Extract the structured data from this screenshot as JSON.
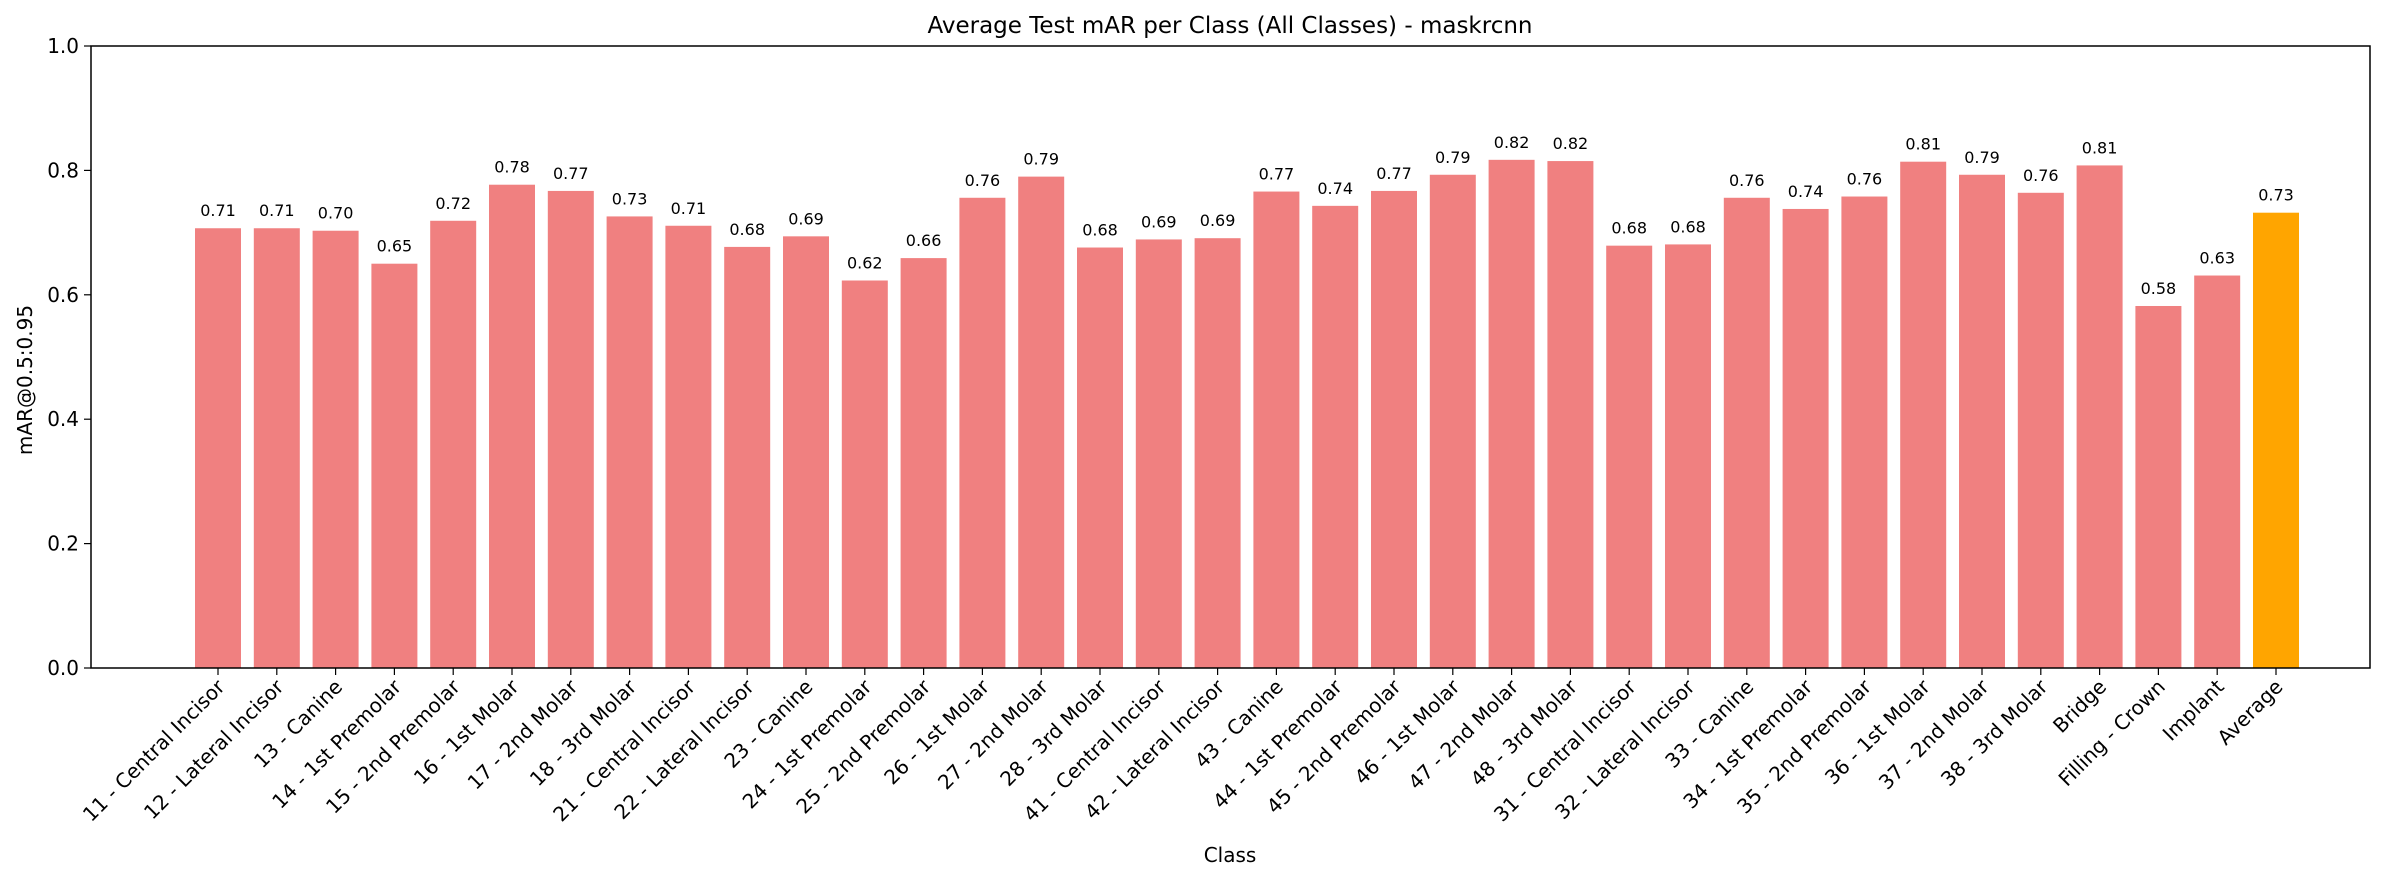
{
  "chart_data": {
    "type": "bar",
    "title": "Average Test mAR per Class (All Classes) - maskrcnn",
    "xlabel": "Class",
    "ylabel": "mAR@0.5:0.95",
    "ylim": [
      0,
      1.0
    ],
    "yticks": [
      "0.0",
      "0.2",
      "0.4",
      "0.6",
      "0.8",
      "1.0"
    ],
    "grid": false,
    "categories": [
      "11 - Central Incisor",
      "12 - Lateral Incisor",
      "13 - Canine",
      "14 - 1st Premolar",
      "15 - 2nd Premolar",
      "16 - 1st Molar",
      "17 - 2nd Molar",
      "18 - 3rd Molar",
      "21 - Central Incisor",
      "22 - Lateral Incisor",
      "23 - Canine",
      "24 - 1st Premolar",
      "25 - 2nd Premolar",
      "26 - 1st Molar",
      "27 - 2nd Molar",
      "28 - 3rd Molar",
      "41 - Central Incisor",
      "42 - Lateral Incisor",
      "43 - Canine",
      "44 - 1st Premolar",
      "45 - 2nd Premolar",
      "46 - 1st Molar",
      "47 - 2nd Molar",
      "48 - 3rd Molar",
      "31 - Central Incisor",
      "32 - Lateral Incisor",
      "33 - Canine",
      "34 - 1st Premolar",
      "35 - 2nd Premolar",
      "36 - 1st Molar",
      "37 - 2nd Molar",
      "38 - 3rd Molar",
      "Bridge",
      "Filling - Crown",
      "Implant",
      "Average"
    ],
    "values": [
      0.707,
      0.707,
      0.703,
      0.65,
      0.719,
      0.777,
      0.767,
      0.726,
      0.711,
      0.677,
      0.694,
      0.623,
      0.659,
      0.756,
      0.79,
      0.676,
      0.689,
      0.691,
      0.766,
      0.743,
      0.767,
      0.793,
      0.817,
      0.815,
      0.679,
      0.681,
      0.756,
      0.738,
      0.758,
      0.814,
      0.793,
      0.764,
      0.808,
      0.582,
      0.631,
      0.732
    ],
    "labels": [
      "0.71",
      "0.71",
      "0.70",
      "0.65",
      "0.72",
      "0.78",
      "0.77",
      "0.73",
      "0.71",
      "0.68",
      "0.69",
      "0.62",
      "0.66",
      "0.76",
      "0.79",
      "0.68",
      "0.69",
      "0.69",
      "0.77",
      "0.74",
      "0.77",
      "0.79",
      "0.82",
      "0.82",
      "0.68",
      "0.68",
      "0.76",
      "0.74",
      "0.76",
      "0.81",
      "0.79",
      "0.76",
      "0.81",
      "0.58",
      "0.63",
      "0.73"
    ],
    "colors": {
      "bar": "#f08080",
      "average_bar": "#ffa500"
    }
  }
}
